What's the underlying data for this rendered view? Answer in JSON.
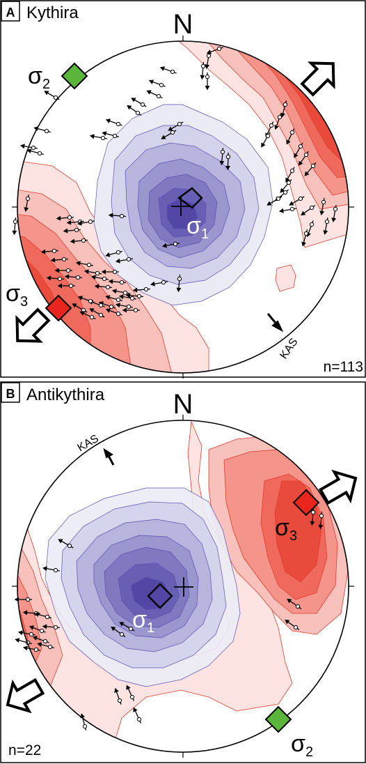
{
  "colors": {
    "blue_shades": [
      "#ebebf6",
      "#d3d3ec",
      "#b7b5dd",
      "#9a97cf",
      "#7f79c0",
      "#665fb3",
      "#5247a4"
    ],
    "red_shades": [
      "#fde4e2",
      "#f9c1bc",
      "#f4948b",
      "#ef6a5d",
      "#e84a3b"
    ],
    "sigma2_marker": "#5ab53a",
    "sigma3_marker": "#e8261e",
    "contour_line": "#e23a2a"
  },
  "panels": [
    {
      "letter": "A",
      "site": "Kythira",
      "north": "N",
      "sigma1": {
        "symbol": "σ",
        "sub": "1"
      },
      "sigma2": {
        "symbol": "σ",
        "sub": "2"
      },
      "sigma3": {
        "symbol": "σ",
        "sub": "3"
      },
      "fault_label": "KAS",
      "n_label": "n=113"
    },
    {
      "letter": "B",
      "site": "Antikythira",
      "north": "N",
      "sigma1": {
        "symbol": "σ",
        "sub": "1"
      },
      "sigma2": {
        "symbol": "σ",
        "sub": "2"
      },
      "sigma3": {
        "symbol": "σ",
        "sub": "3"
      },
      "fault_label": "KAS",
      "n_label": "n=22"
    }
  ]
}
